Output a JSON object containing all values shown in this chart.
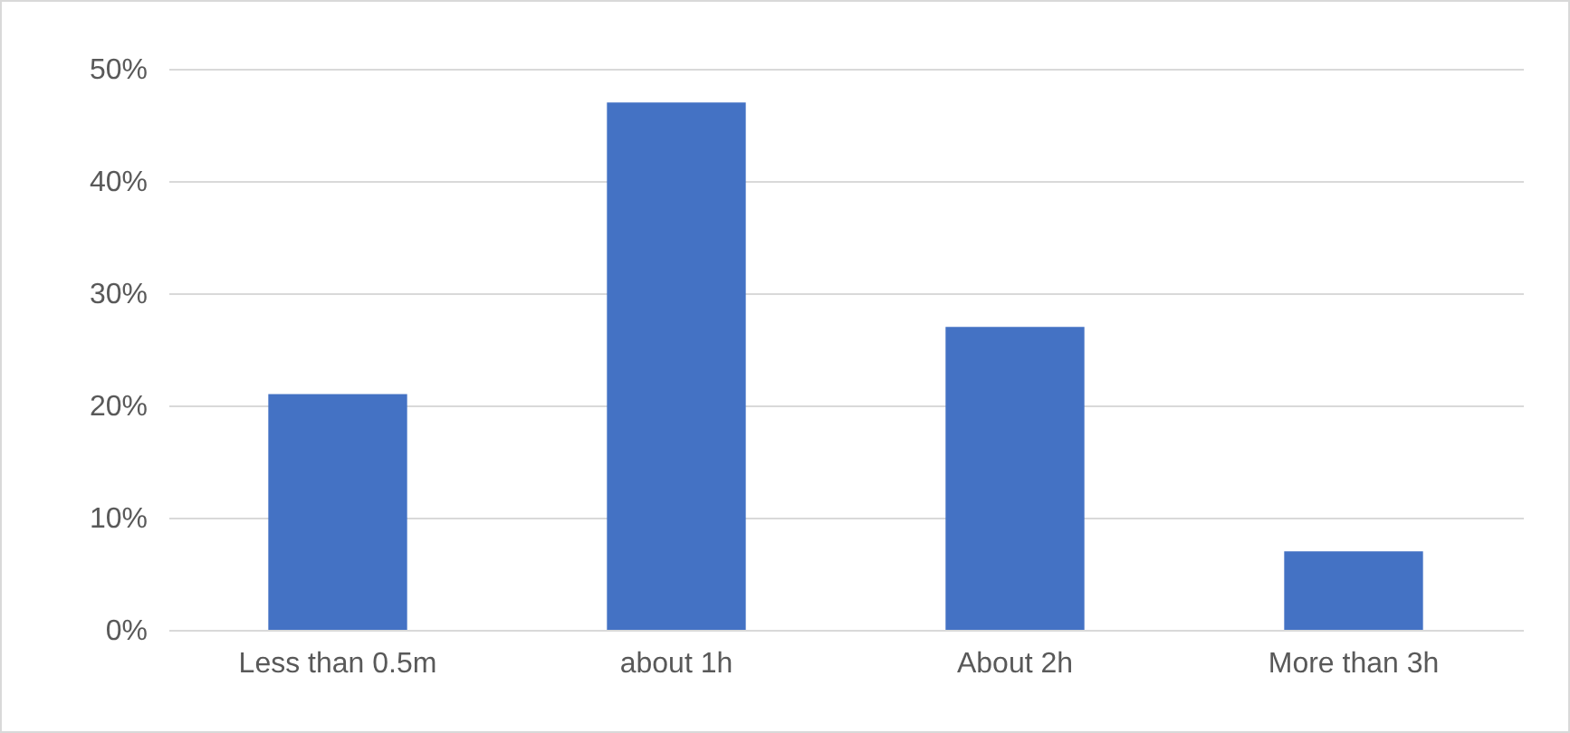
{
  "chart_data": {
    "type": "bar",
    "categories": [
      "Less than 0.5m",
      "about 1h",
      "About 2h",
      "More than 3h"
    ],
    "values": [
      21,
      47,
      27,
      7
    ],
    "color": "#4472c4",
    "ylim": [
      0,
      50
    ],
    "yticks": [
      {
        "value": 0,
        "label": "0%"
      },
      {
        "value": 10,
        "label": "10%"
      },
      {
        "value": 20,
        "label": "20%"
      },
      {
        "value": 30,
        "label": "30%"
      },
      {
        "value": 40,
        "label": "40%"
      },
      {
        "value": 50,
        "label": "50%"
      }
    ],
    "grid": "y"
  }
}
